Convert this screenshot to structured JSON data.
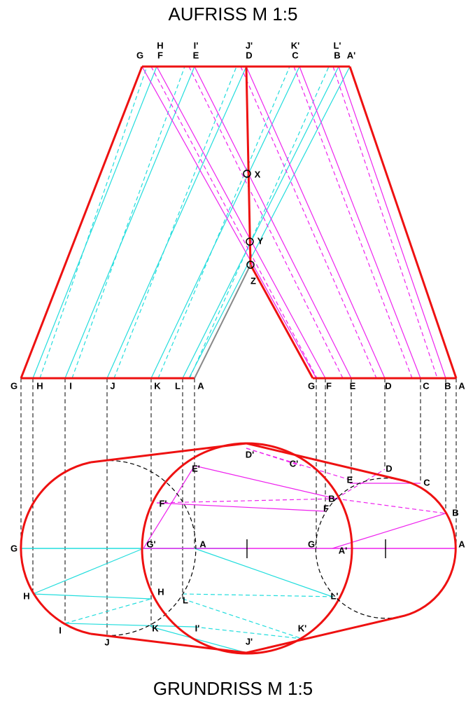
{
  "title_top": "AUFRISS  M 1:5",
  "title_bottom": "GRUNDRISS  M 1:5",
  "labels": [
    "G",
    "H",
    "F",
    "I'",
    "E",
    "J'",
    "D",
    "K'",
    "C",
    "L'",
    "B",
    "A'",
    "X",
    "Y",
    "Z",
    "G",
    "H",
    "I",
    "J",
    "K",
    "L",
    "A",
    "G",
    "F",
    "E",
    "D",
    "C",
    "B",
    "A",
    "D'",
    "C'",
    "D",
    "C",
    "E'",
    "E",
    "B",
    "F'",
    "F",
    "B",
    "G",
    "G'",
    "A",
    "G",
    "A'",
    "A",
    "H",
    "H",
    "L",
    "L'",
    "I",
    "J",
    "K",
    "I'",
    "K'",
    "J'"
  ]
}
